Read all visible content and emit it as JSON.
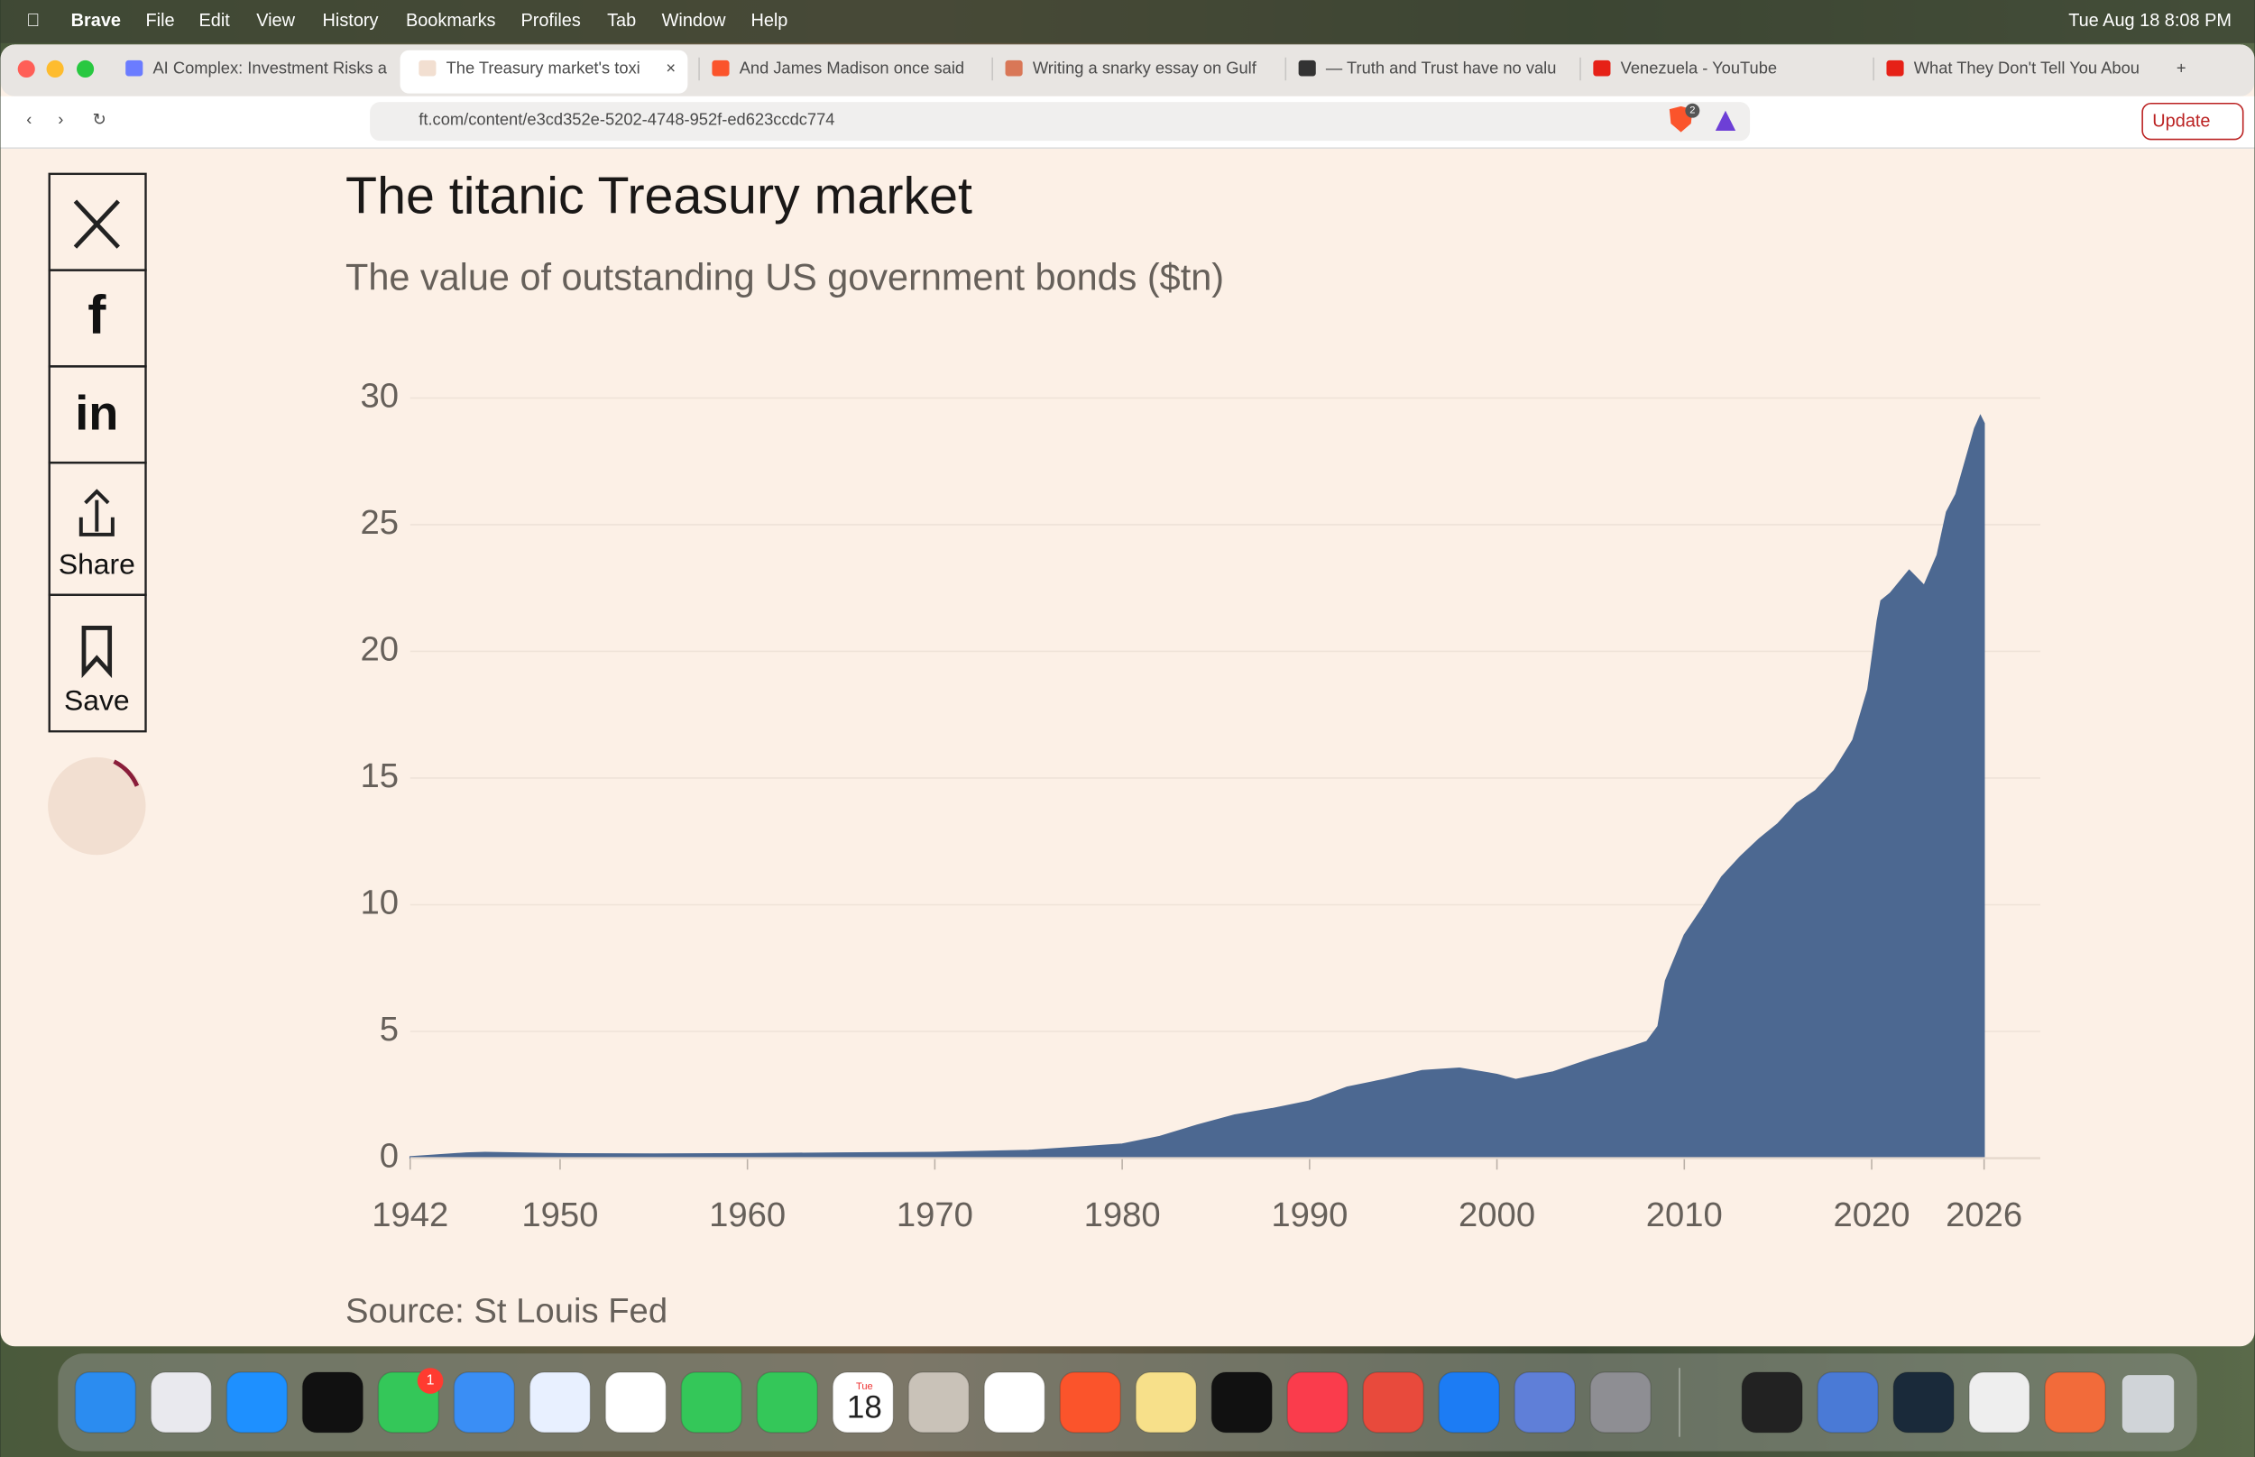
{
  "menu_bar": {
    "app": "Brave",
    "items": [
      "File",
      "Edit",
      "View",
      "History",
      "Bookmarks",
      "Profiles",
      "Tab",
      "Window",
      "Help"
    ],
    "clock": "Tue Aug 18  8:08 PM"
  },
  "tabs": [
    "AI Complex: Investment Risks a",
    "The Treasury market's toxi",
    "And James Madison once said",
    "Writing a snarky essay on Gulf",
    "— Truth and Trust have no valu",
    "Venezuela - YouTube",
    "What They Don't Tell You Abou"
  ],
  "address_bar": {
    "url": "ft.com/content/e3cd352e-5202-4748-952f-ed623ccdc774",
    "shield_badge": "2",
    "update_button": "Update"
  },
  "share_rail": {
    "share": "Share",
    "save": "Save"
  },
  "chart_data": {
    "type": "area",
    "title": "The titanic Treasury market",
    "subtitle": "The value of outstanding US government bonds ($tn)",
    "source": "Source: St Louis Fed",
    "x": [
      1942,
      1945,
      1946,
      1950,
      1955,
      1960,
      1965,
      1970,
      1975,
      1978,
      1980,
      1982,
      1984,
      1986,
      1988,
      1990,
      1992,
      1994,
      1996,
      1998,
      2000,
      2001,
      2003,
      2005,
      2007,
      2008,
      2008.6,
      2009,
      2010,
      2011,
      2012,
      2013,
      2014,
      2015,
      2016,
      2017,
      2018,
      2019,
      2019.8,
      2020.3,
      2020.5,
      2021,
      2022,
      2022.8,
      2023.5,
      2024,
      2024.5,
      2025,
      2025.5,
      2025.8,
      2026
    ],
    "series": [
      {
        "name": "Outstanding US government bonds",
        "color": "#4c6891",
        "values": [
          0.05,
          0.2,
          0.22,
          0.17,
          0.16,
          0.17,
          0.2,
          0.22,
          0.3,
          0.45,
          0.55,
          0.85,
          1.3,
          1.7,
          1.95,
          2.25,
          2.8,
          3.1,
          3.45,
          3.55,
          3.3,
          3.1,
          3.4,
          3.9,
          4.35,
          4.6,
          5.2,
          7.0,
          8.8,
          9.9,
          11.1,
          11.9,
          12.6,
          13.2,
          14.0,
          14.5,
          15.3,
          16.5,
          18.5,
          21.2,
          22.0,
          22.3,
          23.2,
          22.6,
          23.8,
          25.5,
          26.2,
          27.5,
          28.8,
          29.3,
          29.0
        ]
      }
    ],
    "xlim": [
      1942,
      2029
    ],
    "xticks": [
      1942,
      1950,
      1960,
      1970,
      1980,
      1990,
      2000,
      2010,
      2020,
      2026
    ],
    "ylim": [
      0,
      30
    ],
    "yticks": [
      0,
      5,
      10,
      15,
      20,
      25,
      30
    ],
    "grid": true
  },
  "dock": {
    "messages_badge": "1",
    "calendar_month": "Tue",
    "calendar_day": "18"
  }
}
